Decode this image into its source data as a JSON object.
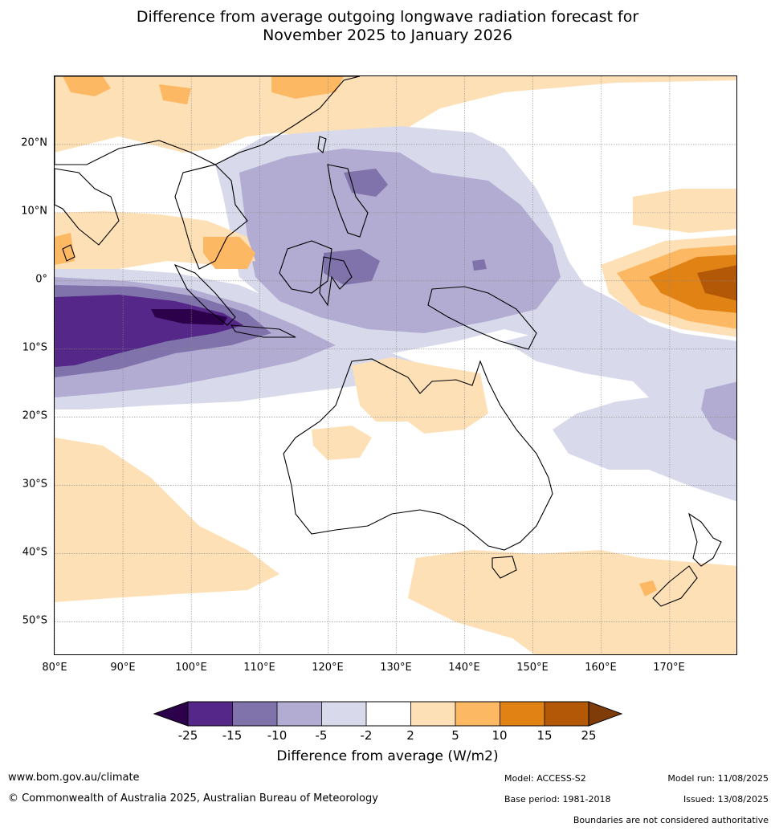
{
  "title": {
    "line1": "Difference from average outgoing longwave radiation forecast for",
    "line2": "November 2025 to January 2026"
  },
  "map": {
    "lat_labels": [
      "20°N",
      "10°N",
      "0°",
      "10°S",
      "20°S",
      "30°S",
      "40°S",
      "50°S"
    ],
    "lat_values": [
      20,
      10,
      0,
      -10,
      -20,
      -30,
      -40,
      -50
    ],
    "lon_labels": [
      "80°E",
      "90°E",
      "100°E",
      "110°E",
      "120°E",
      "130°E",
      "140°E",
      "150°E",
      "160°E",
      "170°E"
    ],
    "lon_values": [
      80,
      90,
      100,
      110,
      120,
      130,
      140,
      150,
      160,
      170
    ],
    "extent": {
      "lon": [
        80,
        180
      ],
      "lat": [
        -55,
        30
      ]
    }
  },
  "colorbar": {
    "ticks": [
      "-25",
      "-15",
      "-10",
      "-5",
      "-2",
      "2",
      "5",
      "10",
      "15",
      "25"
    ],
    "colors": [
      "#2d004b",
      "#542788",
      "#8073ac",
      "#b2abd2",
      "#d8daeb",
      "#ffffff",
      "#fee0b6",
      "#fdb863",
      "#e08214",
      "#b35806",
      "#7f3b08"
    ],
    "label": "Difference from average (W/m2)"
  },
  "footer": {
    "website": "www.bom.gov.au/climate",
    "copyright": "© Commonwealth of Australia 2025, Australian Bureau of Meteorology",
    "model": "Model: ACCESS-S2",
    "base_period": "Base period: 1981-2018",
    "model_run": "Model run: 11/08/2025",
    "issued": "Issued: 13/08/2025",
    "disclaimer": "Boundaries are not considered authoritative"
  }
}
